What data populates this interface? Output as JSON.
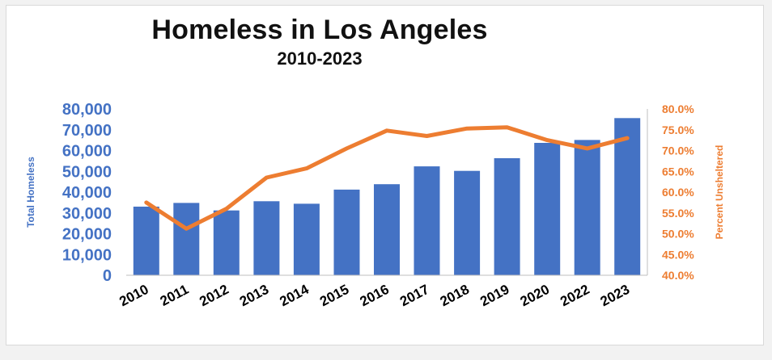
{
  "chart_data": {
    "type": "bar",
    "title": "Homeless in Los Angeles",
    "subtitle": "2010-2023",
    "categories": [
      "2010",
      "2011",
      "2012",
      "2013",
      "2014",
      "2015",
      "2016",
      "2017",
      "2018",
      "2019",
      "2020",
      "2022",
      "2023"
    ],
    "series": [
      {
        "name": "Total Homeless",
        "type": "bar",
        "axis": "left",
        "color": "#4472C4",
        "values": [
          33000,
          34800,
          31200,
          35600,
          34400,
          41200,
          43800,
          52400,
          50200,
          56300,
          63700,
          65100,
          75600
        ]
      },
      {
        "name": "Percent Unsheltered",
        "type": "line",
        "axis": "right",
        "color": "#ED7D31",
        "values": [
          57.5,
          51.2,
          56.0,
          63.5,
          65.7,
          70.5,
          74.8,
          73.5,
          75.3,
          75.6,
          72.5,
          70.5,
          73.0
        ]
      }
    ],
    "y_left": {
      "label": "Total Homeless",
      "range": [
        0,
        80000
      ],
      "ticks": [
        "0",
        "10,000",
        "20,000",
        "30,000",
        "40,000",
        "50,000",
        "60,000",
        "70,000",
        "80,000"
      ],
      "color": "#4472C4"
    },
    "y_right": {
      "label": "Percent Unsheltered",
      "range": [
        40.0,
        80.0
      ],
      "ticks": [
        "40.0%",
        "45.0%",
        "50.0%",
        "55.0%",
        "60.0%",
        "65.0%",
        "70.0%",
        "75.0%",
        "80.0%"
      ],
      "color": "#ED7D31"
    },
    "grid": false,
    "legend": "none"
  }
}
